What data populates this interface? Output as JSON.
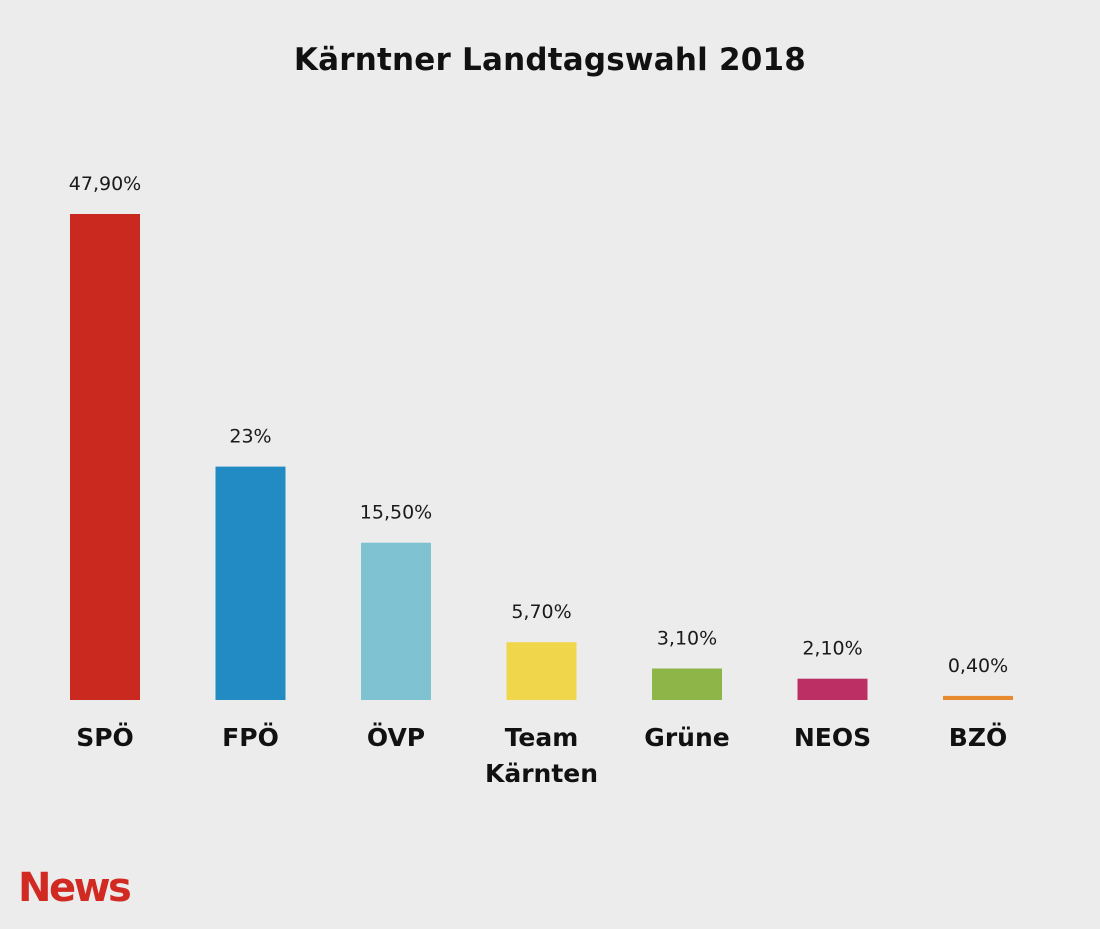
{
  "chart_data": {
    "type": "bar",
    "title": "Kärntner Landtagswahl 2018",
    "xlabel": "",
    "ylabel": "",
    "ylim": [
      0,
      47.9
    ],
    "grid": false,
    "categories": [
      "SPÖ",
      "FPÖ",
      "ÖVP",
      "Team Kärnten",
      "Grüne",
      "NEOS",
      "BZÖ"
    ],
    "category_lines": [
      [
        "SPÖ"
      ],
      [
        "FPÖ"
      ],
      [
        "ÖVP"
      ],
      [
        "Team",
        "Kärnten"
      ],
      [
        "Grüne"
      ],
      [
        "NEOS"
      ],
      [
        "BZÖ"
      ]
    ],
    "values": [
      47.9,
      23,
      15.5,
      5.7,
      3.1,
      2.1,
      0.4
    ],
    "value_labels": [
      "47,90%",
      "23%",
      "15,50%",
      "5,70%",
      "3,10%",
      "2,10%",
      "0,40%"
    ],
    "colors": [
      "#c9291f",
      "#228bc3",
      "#7fc3d2",
      "#f0d64a",
      "#8db548",
      "#bb2f64",
      "#e88b2e"
    ]
  },
  "branding": {
    "logo_text": "News",
    "logo_color": "#d12a22"
  }
}
